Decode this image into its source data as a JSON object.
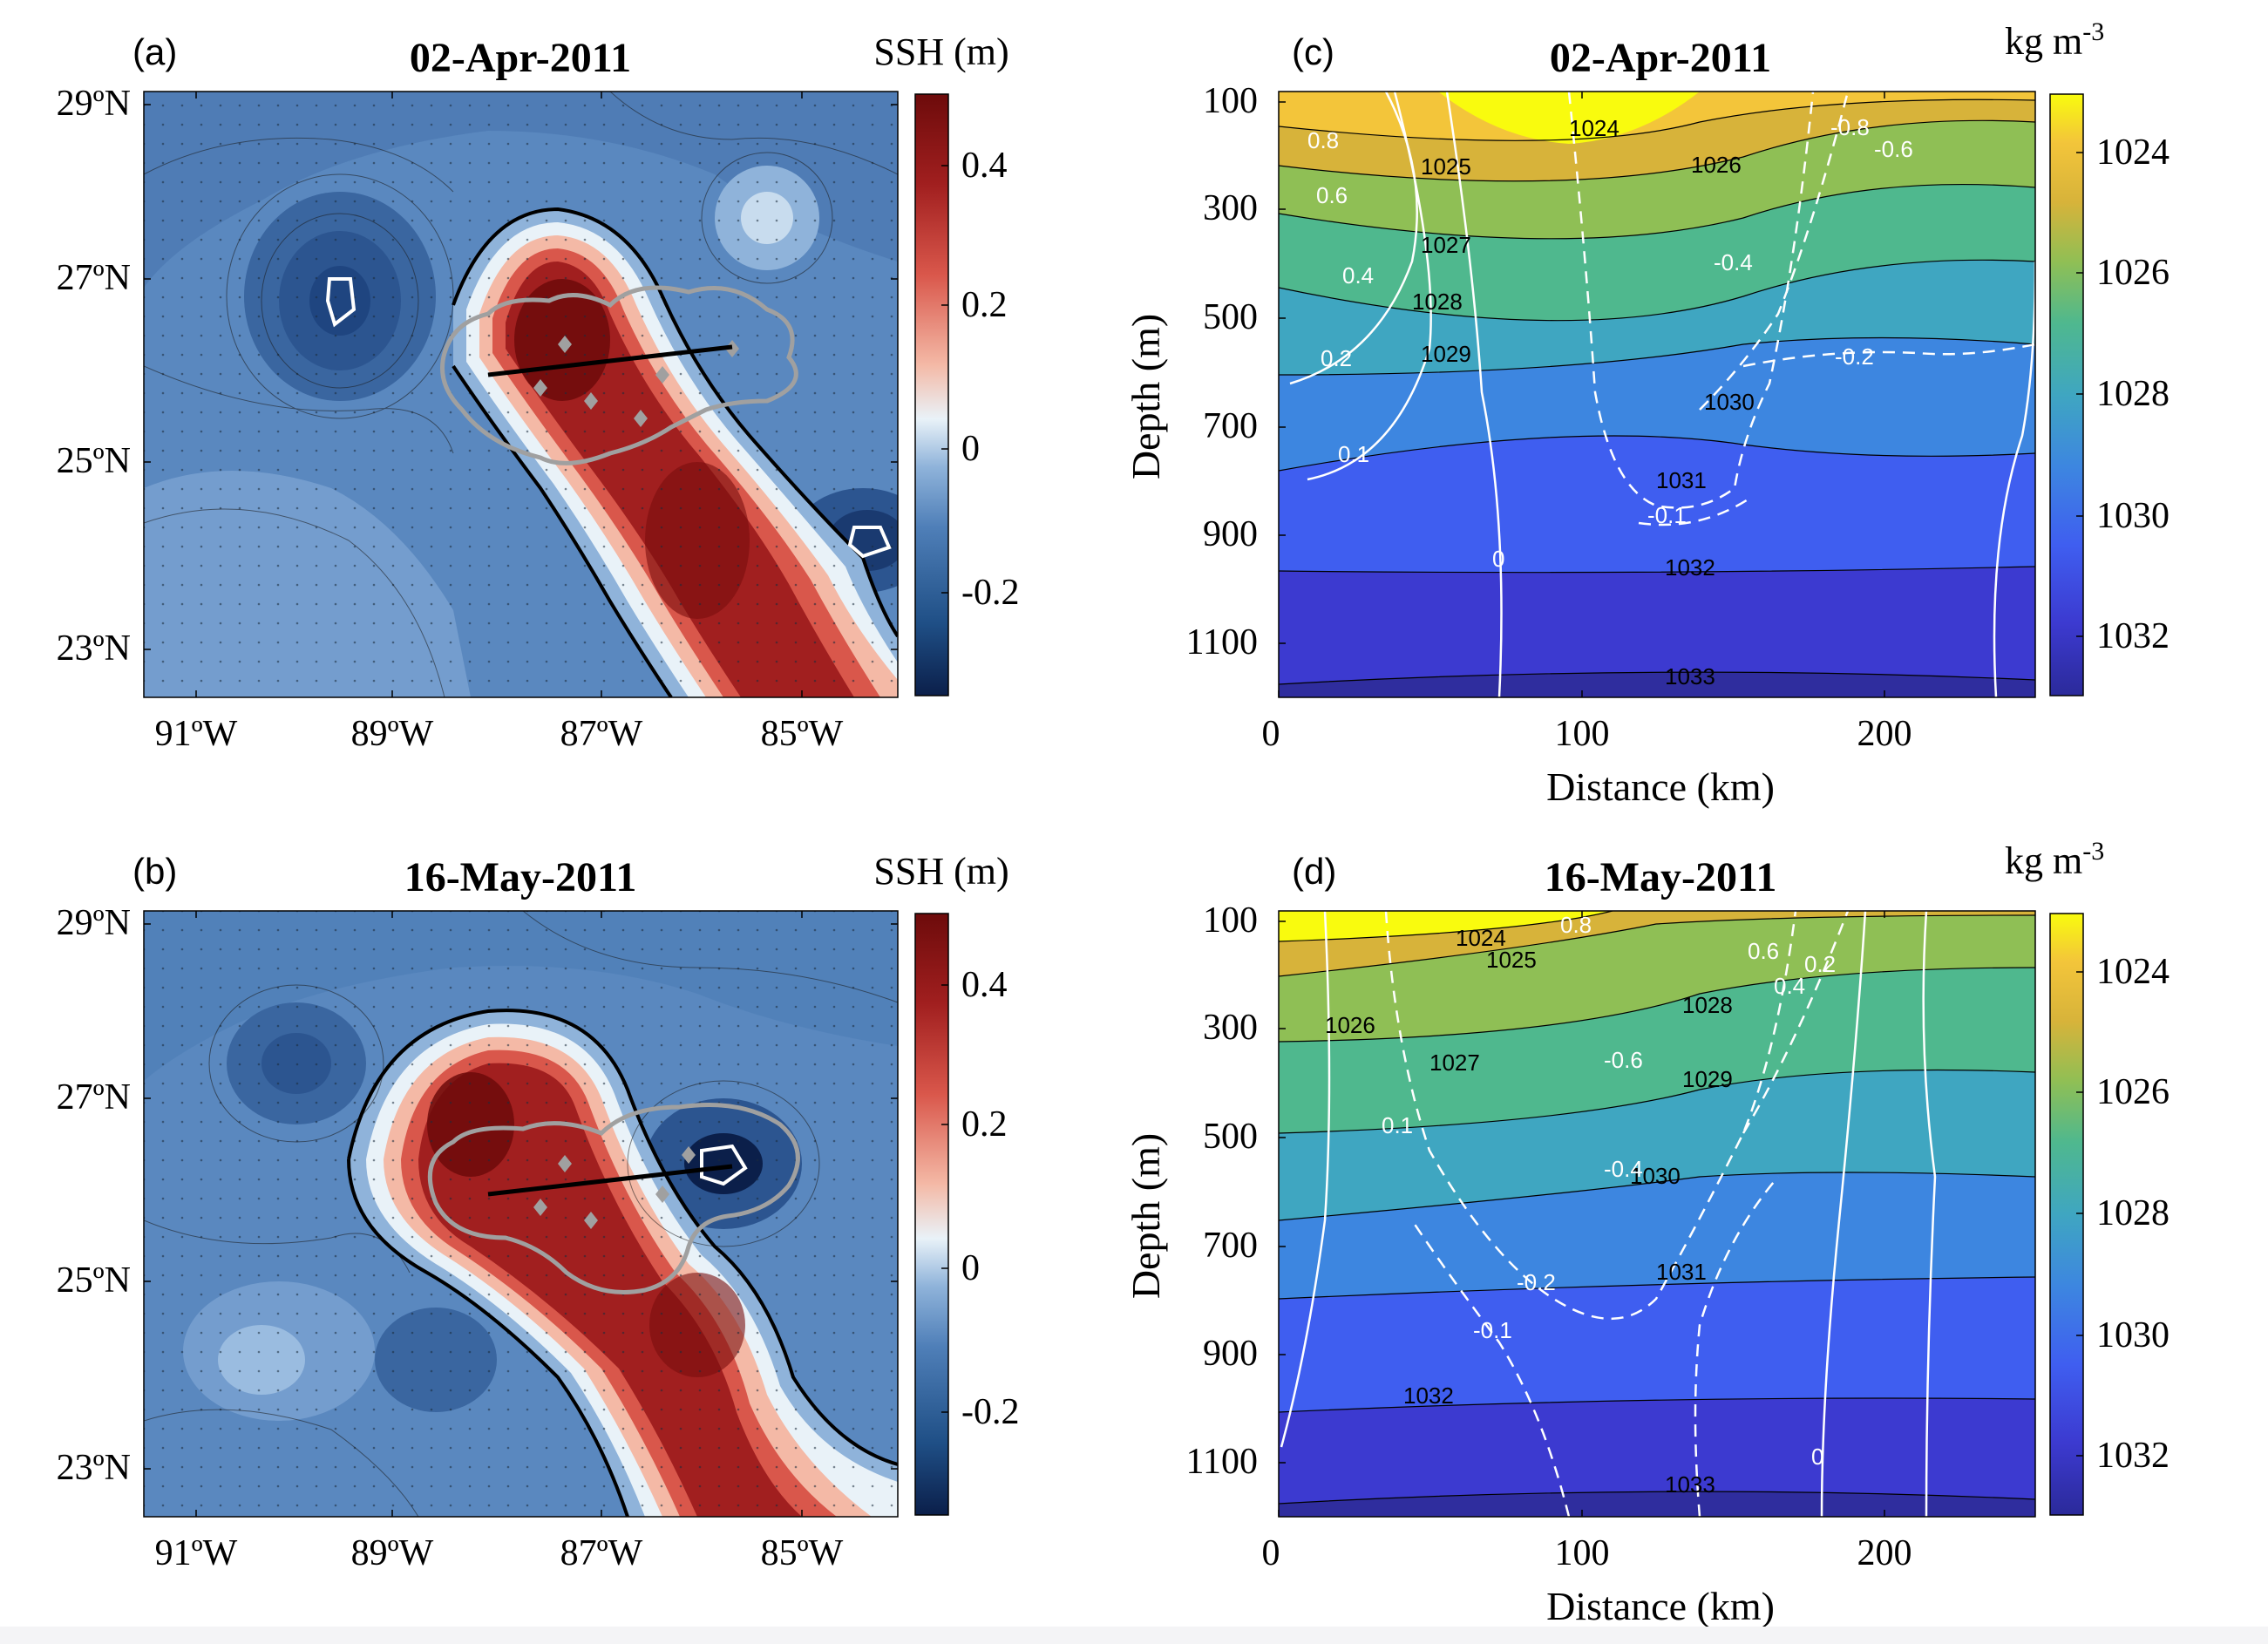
{
  "colors": {
    "ssh_colormap": [
      "#0b1f4a",
      "#1f4f86",
      "#4f7fb8",
      "#8fb3da",
      "#e9f2f8",
      "#f4b9a6",
      "#d9574b",
      "#a11f1f",
      "#6d0b0b"
    ],
    "density_colormap": [
      "#f9fb0e",
      "#f3c53a",
      "#d7b33a",
      "#8fbf55",
      "#4fb88e",
      "#3fa6c1",
      "#3d86e0",
      "#3f5ef0",
      "#3c3ad0",
      "#2b2a9a"
    ],
    "eddy_outline": "#a0a0a0",
    "section_line": "#000000",
    "velocity_contour": "#ffffff",
    "density_contour": "#000000"
  },
  "chart_data": [
    {
      "panel_label": "(a)",
      "type": "heatmap",
      "title": "02-Apr-2011",
      "colorbar_label": "SSH (m)",
      "colorbar_ticks": [
        "0.4",
        "0.2",
        "0",
        "-0.2"
      ],
      "colorbar_range": [
        -0.35,
        0.5
      ],
      "x_ticks": [
        "91ºW",
        "89ºW",
        "87ºW",
        "85ºW"
      ],
      "y_ticks": [
        "29ºN",
        "27ºN",
        "25ºN",
        "23ºN"
      ],
      "xlim": [
        -91.5,
        -84.0
      ],
      "ylim": [
        22.5,
        29.0
      ],
      "section_line": {
        "lon": [
          -88.0,
          -85.6
        ],
        "lat": [
          25.9,
          26.2
        ]
      },
      "stations": [
        {
          "lon": -87.3,
          "lat": 26.3
        },
        {
          "lon": -87.8,
          "lat": 25.7
        },
        {
          "lon": -87.0,
          "lat": 25.5
        },
        {
          "lon": -86.5,
          "lat": 25.3
        }
      ]
    },
    {
      "panel_label": "(b)",
      "type": "heatmap",
      "title": "16-May-2011",
      "colorbar_label": "SSH (m)",
      "colorbar_ticks": [
        "0.4",
        "0.2",
        "0",
        "-0.2"
      ],
      "colorbar_range": [
        -0.35,
        0.5
      ],
      "x_ticks": [
        "91ºW",
        "89ºW",
        "87ºW",
        "85ºW"
      ],
      "y_ticks": [
        "29ºN",
        "27ºN",
        "25ºN",
        "23ºN"
      ],
      "xlim": [
        -91.5,
        -84.0
      ],
      "ylim": [
        22.5,
        29.0
      ],
      "section_line": {
        "lon": [
          -88.0,
          -85.6
        ],
        "lat": [
          25.9,
          26.2
        ]
      },
      "stations": [
        {
          "lon": -87.3,
          "lat": 26.3
        },
        {
          "lon": -87.8,
          "lat": 25.7
        },
        {
          "lon": -87.0,
          "lat": 25.5
        },
        {
          "lon": -86.5,
          "lat": 25.3
        }
      ]
    },
    {
      "panel_label": "(c)",
      "type": "heatmap",
      "title": "02-Apr-2011",
      "colorbar_label": "kg m",
      "colorbar_label_sup": "-3",
      "colorbar_ticks": [
        "1024",
        "1026",
        "1028",
        "1030",
        "1032"
      ],
      "colorbar_range": [
        1023,
        1033
      ],
      "xlabel": "Distance (km)",
      "ylabel": "Depth (m)",
      "x_ticks": [
        "0",
        "100",
        "200"
      ],
      "y_ticks": [
        "100",
        "300",
        "500",
        "700",
        "900",
        "1100"
      ],
      "xlim": [
        0,
        250
      ],
      "ylim": [
        1200,
        0
      ],
      "density_contours": [
        {
          "label": "1024",
          "depths_at": {
            "0": 0,
            "100": 60,
            "200": 0
          }
        },
        {
          "label": "1025",
          "depths_at": {
            "0": 90,
            "100": 170,
            "250": 20
          }
        },
        {
          "label": "1026",
          "depths_at": {
            "0": 140,
            "100": 250,
            "250": 40
          }
        },
        {
          "label": "1027",
          "depths_at": {
            "0": 230,
            "100": 360,
            "250": 120
          }
        },
        {
          "label": "1028",
          "depths_at": {
            "0": 330,
            "100": 470,
            "250": 230
          }
        },
        {
          "label": "1029",
          "depths_at": {
            "0": 450,
            "100": 580,
            "250": 370
          }
        },
        {
          "label": "1030",
          "depths_at": {
            "0": 570,
            "100": 650,
            "250": 520
          }
        },
        {
          "label": "1031",
          "depths_at": {
            "0": 730,
            "100": 760,
            "250": 680
          }
        },
        {
          "label": "1032",
          "depths_at": {
            "0": 880,
            "100": 870,
            "250": 840
          }
        },
        {
          "label": "1033",
          "depths_at": {
            "0": 1130,
            "100": 1120,
            "250": 1110
          }
        }
      ],
      "velocity_labels": [
        "0.8",
        "0.6",
        "0.4",
        "0.2",
        "0.1",
        "0",
        "-0.1",
        "-0.2",
        "-0.4",
        "-0.6",
        "-0.8"
      ]
    },
    {
      "panel_label": "(d)",
      "type": "heatmap",
      "title": "16-May-2011",
      "colorbar_label": "kg m",
      "colorbar_label_sup": "-3",
      "colorbar_ticks": [
        "1024",
        "1026",
        "1028",
        "1030",
        "1032"
      ],
      "colorbar_range": [
        1023,
        1033
      ],
      "xlabel": "Distance (km)",
      "ylabel": "Depth (m)",
      "x_ticks": [
        "0",
        "100",
        "200"
      ],
      "y_ticks": [
        "100",
        "300",
        "500",
        "700",
        "900",
        "1100"
      ],
      "xlim": [
        0,
        250
      ],
      "ylim": [
        1200,
        0
      ],
      "density_contours": [
        {
          "label": "1024",
          "depths_at": {
            "0": 20,
            "100": 0,
            "250": 0
          }
        },
        {
          "label": "1025",
          "depths_at": {
            "0": 120,
            "100": 20,
            "250": 0
          }
        },
        {
          "label": "1026",
          "depths_at": {
            "0": 200,
            "100": 80,
            "250": 0
          }
        },
        {
          "label": "1027",
          "depths_at": {
            "0": 300,
            "100": 230,
            "250": 80
          }
        },
        {
          "label": "1028",
          "depths_at": {
            "0": 420,
            "100": 320,
            "250": 200
          }
        },
        {
          "label": "1029",
          "depths_at": {
            "0": 550,
            "100": 440,
            "250": 360
          }
        },
        {
          "label": "1030",
          "depths_at": {
            "0": 650,
            "100": 590,
            "250": 530
          }
        },
        {
          "label": "1031",
          "depths_at": {
            "0": 790,
            "100": 730,
            "250": 690
          }
        },
        {
          "label": "1032",
          "depths_at": {
            "0": 950,
            "100": 900,
            "250": 870
          }
        },
        {
          "label": "1033",
          "depths_at": {
            "0": 1160,
            "100": 1140,
            "250": 1130
          }
        }
      ],
      "velocity_labels": [
        "0.8",
        "0.6",
        "0.4",
        "0.2",
        "0.1",
        "0",
        "-0.1",
        "-0.2",
        "-0.4",
        "-0.6"
      ]
    }
  ]
}
